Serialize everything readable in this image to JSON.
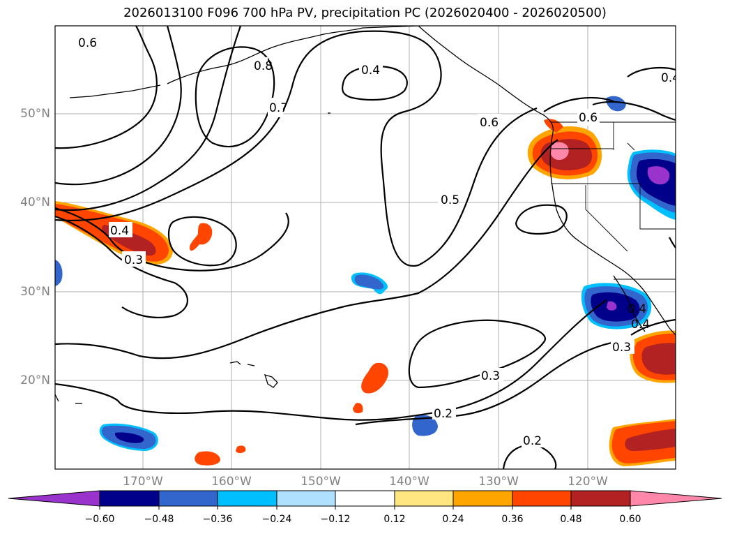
{
  "title": "2026013100 F096 700 hPa PV, precipitation PC (2026020400 - 2026020500)",
  "lat_labels": [
    "50°N",
    "40°N",
    "30°N",
    "20°N"
  ],
  "lon_labels": [
    "170°W",
    "160°W",
    "150°W",
    "140°W",
    "130°W",
    "120°W"
  ],
  "contour_labels": [
    "0.6",
    "0.8",
    "0.7",
    "0.4",
    "0.6",
    "0.5",
    "0.6",
    "0.4",
    "0.3",
    "0.3",
    "0.2",
    "0.3",
    "0.2",
    "0.4",
    "0.4",
    "0.4"
  ],
  "colorbar": {
    "ticks": [
      "−0.60",
      "−0.48",
      "−0.36",
      "−0.24",
      "−0.12",
      "0.12",
      "0.24",
      "0.36",
      "0.48",
      "0.60"
    ],
    "colors": [
      "#9933cc",
      "#00008b",
      "#3366cc",
      "#00bfff",
      "#b0e0ff",
      "#ffffff",
      "#ffe680",
      "#ffa500",
      "#ff4500",
      "#b22222",
      "#ff88aa"
    ]
  }
}
